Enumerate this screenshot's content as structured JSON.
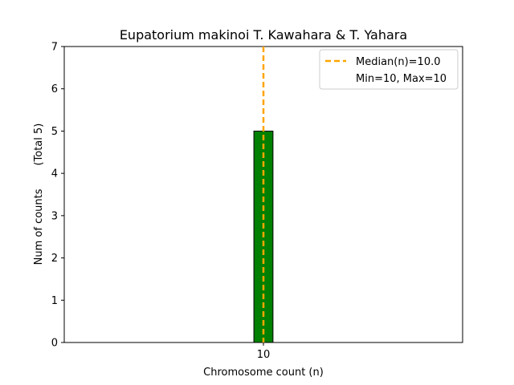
{
  "chart_data": {
    "type": "bar",
    "title": "Eupatorium makinoi T. Kawahara & T. Yahara",
    "xlabel": "Chromosome count (n)",
    "ylabel": "Num of counts       (Total 5)",
    "categories": [
      "10"
    ],
    "x": [
      10
    ],
    "values": [
      5
    ],
    "xlim": [
      5,
      15
    ],
    "ylim": [
      0,
      7
    ],
    "yticks": [
      0,
      1,
      2,
      3,
      4,
      5,
      6,
      7
    ],
    "xticks": [
      10
    ],
    "bar_color": "#008000",
    "bar_edge_color": "#000000",
    "median": 10.0,
    "median_color": "#FFA500",
    "baseline_range": [
      5,
      13
    ],
    "legend": {
      "placement": "top-right",
      "entries": [
        "Median(n)=10.0",
        "Min=10, Max=10"
      ]
    }
  }
}
